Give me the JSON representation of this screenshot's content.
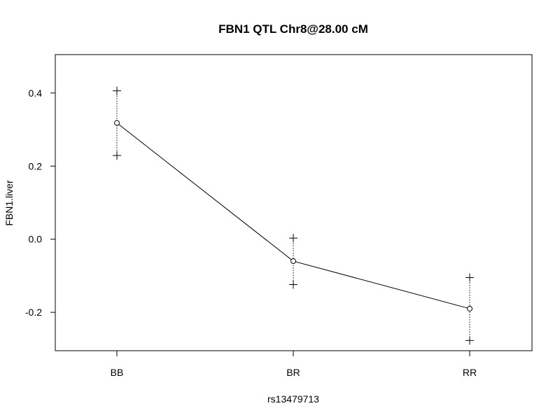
{
  "chart_data": {
    "type": "line",
    "title": "FBN1 QTL Chr8@28.00 cM",
    "xlabel": "rs13479713",
    "ylabel": "FBN1.liver",
    "categories": [
      "BB",
      "BR",
      "RR"
    ],
    "means": [
      0.318,
      -0.06,
      -0.19
    ],
    "upper": [
      0.406,
      0.003,
      -0.105
    ],
    "lower": [
      0.229,
      -0.124,
      -0.277
    ],
    "ylim": [
      -0.305,
      0.505
    ],
    "yticks": [
      0.4,
      0.2,
      0.0,
      -0.2
    ],
    "ytick_labels": [
      "0.4",
      "0.2",
      "0.0",
      "-0.2"
    ],
    "grid": false,
    "colors": {
      "line": "#000000",
      "background": "#ffffff"
    }
  }
}
